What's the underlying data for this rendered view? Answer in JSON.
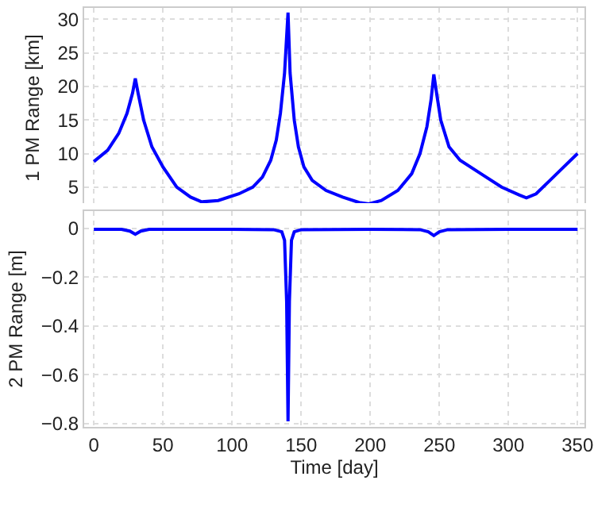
{
  "chart_data": [
    {
      "type": "line",
      "ylabel": "1 PM Range [km]",
      "xlim": [
        -7,
        355
      ],
      "xticks": [
        0,
        50,
        100,
        150,
        200,
        250,
        300,
        350
      ],
      "ylim": [
        1.9,
        31.7
      ],
      "yticks": [
        5,
        10,
        15,
        20,
        25,
        30
      ],
      "grid": true,
      "tick_labels": "y",
      "line_style": "solid",
      "x": [
        0,
        10,
        18,
        24,
        28,
        30,
        32,
        36,
        42,
        50,
        60,
        70,
        78,
        90,
        105,
        115,
        122,
        128,
        132,
        135,
        138,
        140.5,
        142,
        145,
        148,
        152,
        158,
        168,
        180,
        192,
        199,
        208,
        220,
        230,
        236,
        241,
        244,
        246,
        248,
        251,
        257,
        265,
        280,
        295,
        308,
        313,
        320,
        330,
        340,
        350
      ],
      "series": [
        {
          "color": "#0000ff",
          "values": [
            8.8,
            10.5,
            13,
            16,
            19,
            21.2,
            19,
            15,
            11,
            8,
            5,
            3.5,
            2.8,
            3,
            4,
            5,
            6.5,
            9,
            12,
            16,
            22,
            31,
            22,
            15,
            11,
            8,
            6,
            4.5,
            3.5,
            2.7,
            2.5,
            3,
            4.5,
            7,
            10,
            14,
            18,
            21.8,
            19,
            15,
            11,
            9,
            7,
            5,
            3.8,
            3.4,
            4,
            6,
            8,
            10
          ]
        }
      ]
    },
    {
      "type": "line",
      "xlabel": "Time [day]",
      "ylabel": "2 PM Range [m]",
      "xlim": [
        -7,
        355
      ],
      "xticks": [
        0,
        50,
        100,
        150,
        200,
        250,
        300,
        350
      ],
      "ylim": [
        -0.813,
        0.07
      ],
      "yticks": [
        {
          "value": -0.8,
          "label": "−0.8"
        },
        {
          "value": -0.6,
          "label": "−0.6"
        },
        {
          "value": -0.4,
          "label": "−0.4"
        },
        {
          "value": -0.2,
          "label": "−0.2"
        },
        0
      ],
      "grid": true,
      "line_style": "solid",
      "x": [
        0,
        20,
        26,
        30,
        34,
        40,
        100,
        130,
        136,
        138,
        139.5,
        140.5,
        141.5,
        143,
        145,
        150,
        200,
        236,
        242,
        246,
        250,
        256,
        300,
        350
      ],
      "series": [
        {
          "color": "#0000ff",
          "values": [
            -0.005,
            -0.005,
            -0.012,
            -0.025,
            -0.012,
            -0.005,
            -0.005,
            -0.006,
            -0.015,
            -0.05,
            -0.3,
            -0.79,
            -0.3,
            -0.05,
            -0.015,
            -0.006,
            -0.005,
            -0.006,
            -0.015,
            -0.03,
            -0.015,
            -0.006,
            -0.005,
            -0.005
          ]
        }
      ]
    }
  ]
}
